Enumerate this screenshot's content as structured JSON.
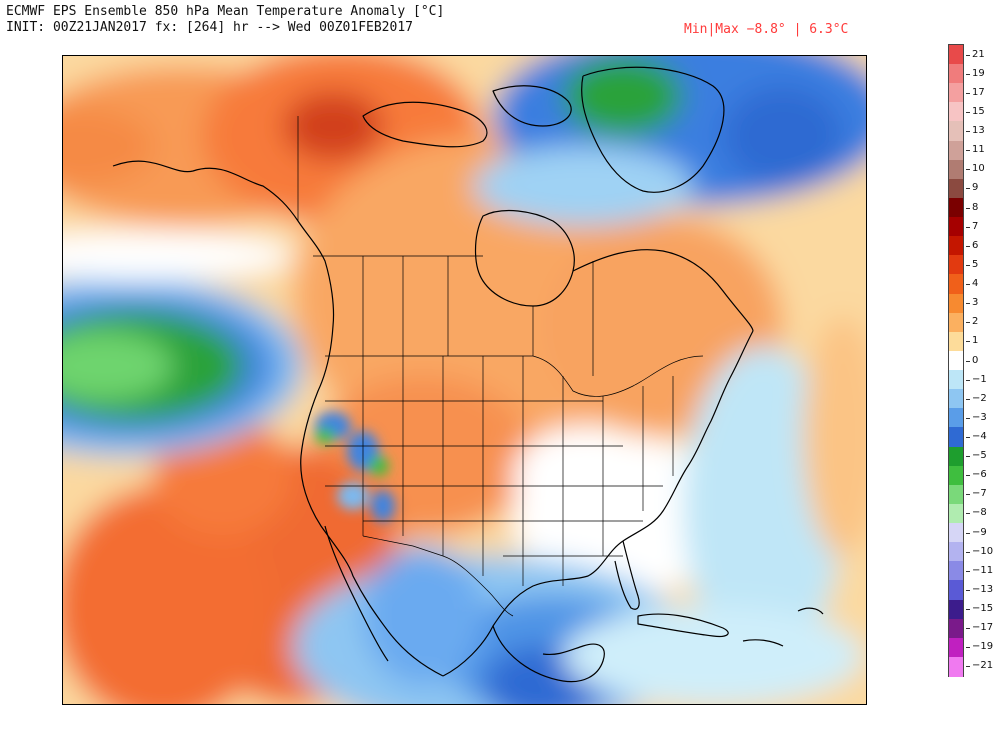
{
  "header": {
    "title": "ECMWF EPS Ensemble 850 hPa Mean Temperature Anomaly [°C]",
    "init_line": "INIT: 00Z21JAN2017 fx: [264] hr --> Wed 00Z01FEB2017",
    "minmax": "Min|Max −8.8° | 6.3°C"
  },
  "map": {
    "region": "North America",
    "variable": "850 hPa mean temperature anomaly",
    "units": "°C"
  },
  "colorbar": {
    "labels": [
      "21",
      "19",
      "17",
      "15",
      "13",
      "11",
      "10",
      "9",
      "8",
      "7",
      "6",
      "5",
      "4",
      "3",
      "2",
      "1",
      "0",
      "−1",
      "−2",
      "−3",
      "−4",
      "−5",
      "−6",
      "−7",
      "−8",
      "−9",
      "−10",
      "−11",
      "−13",
      "−15",
      "−17",
      "−19",
      "−21"
    ],
    "colors": [
      "#e84a4a",
      "#f07c7c",
      "#f4a0a0",
      "#f7c4c4",
      "#e5c0b8",
      "#cfa199",
      "#b07c72",
      "#8b4a40",
      "#7a0000",
      "#a50000",
      "#c41600",
      "#e23a10",
      "#f0601a",
      "#f78a30",
      "#fbb060",
      "#fddc9a",
      "#ffffff",
      "#bde6f7",
      "#8ec6f2",
      "#5a9de8",
      "#2f6ad3",
      "#1e9e2e",
      "#3fbe3f",
      "#7ad97a",
      "#b0ecb0",
      "#d6d6f6",
      "#b3b3f0",
      "#8a8ae6",
      "#5a5ad6",
      "#3c1c8c",
      "#7a1a8a",
      "#c020c0",
      "#f07af0"
    ]
  }
}
